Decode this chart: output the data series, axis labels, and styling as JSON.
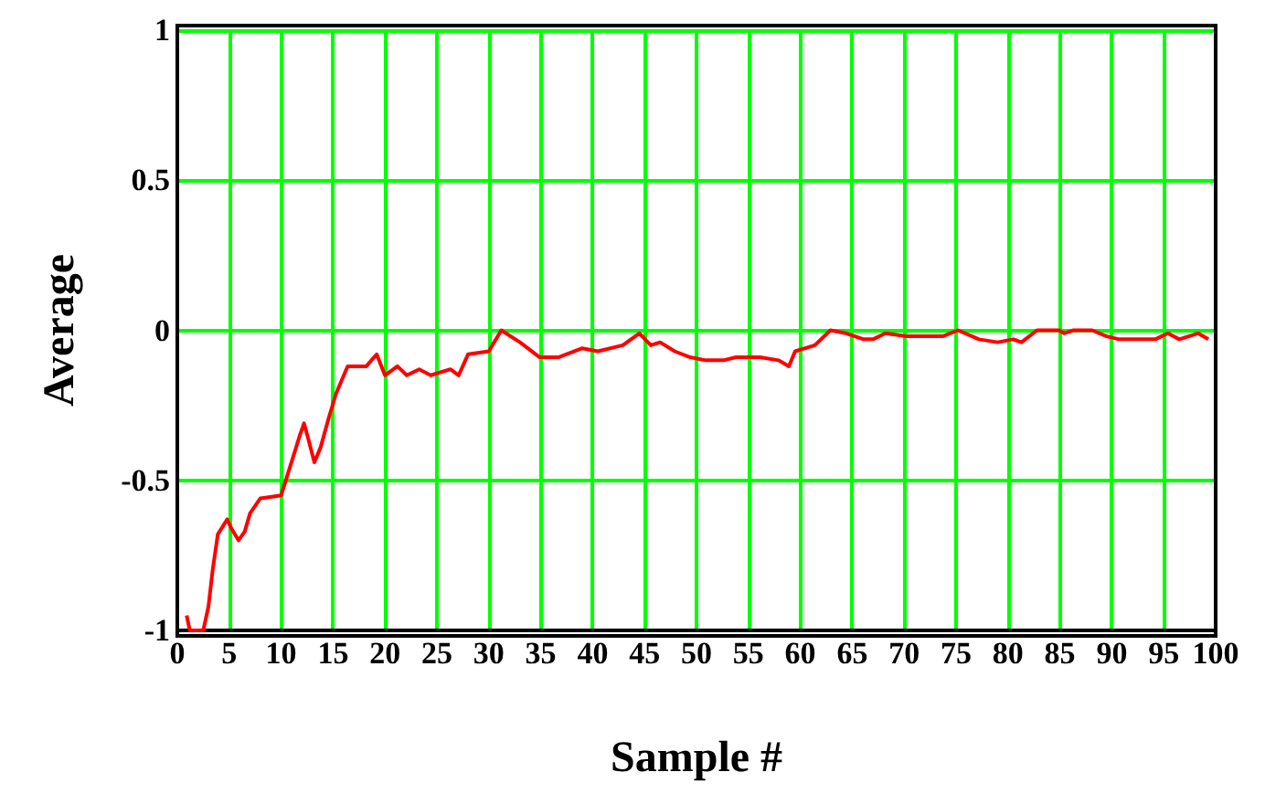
{
  "chart_data": {
    "type": "line",
    "xlabel": "Sample #",
    "ylabel": "Average",
    "xlim": [
      0,
      100
    ],
    "ylim": [
      -1,
      1
    ],
    "xticks": [
      0,
      5,
      10,
      15,
      20,
      25,
      30,
      35,
      40,
      45,
      50,
      55,
      60,
      65,
      70,
      75,
      80,
      85,
      90,
      95,
      100
    ],
    "yticks": [
      -1,
      -0.5,
      0,
      0.5,
      1
    ],
    "grid": true,
    "marker": "none",
    "line_style": "solid",
    "series": [
      {
        "color": "#ff0000",
        "x": [
          0.9,
          1.2,
          2.5,
          3.0,
          3.4,
          3.9,
          4.8,
          5.2,
          5.9,
          6.5,
          7.0,
          8.0,
          10.0,
          10.9,
          11.8,
          12.2,
          12.6,
          13.2,
          13.8,
          14.6,
          15.3,
          16.4,
          18.2,
          19.2,
          20.0,
          21.2,
          22.1,
          23.3,
          24.4,
          26.3,
          27.1,
          28.0,
          30.0,
          31.2,
          33.0,
          34.9,
          36.7,
          39.0,
          40.5,
          42.9,
          44.5,
          45.6,
          46.5,
          47.9,
          49.4,
          50.9,
          52.6,
          53.8,
          56.1,
          57.9,
          58.9,
          59.5,
          61.4,
          62.9,
          64.4,
          66.1,
          67.0,
          68.2,
          70.2,
          73.7,
          75.2,
          77.2,
          79.0,
          80.5,
          81.3,
          82.8,
          84.9,
          85.4,
          86.3,
          88.1,
          89.5,
          90.7,
          94.2,
          95.4,
          96.5,
          98.3,
          99.3
        ],
        "values": [
          -0.95,
          -1.0,
          -1.0,
          -0.92,
          -0.8,
          -0.68,
          -0.63,
          -0.66,
          -0.7,
          -0.67,
          -0.61,
          -0.56,
          -0.55,
          -0.45,
          -0.35,
          -0.31,
          -0.36,
          -0.44,
          -0.39,
          -0.29,
          -0.21,
          -0.12,
          -0.12,
          -0.08,
          -0.15,
          -0.12,
          -0.15,
          -0.13,
          -0.15,
          -0.13,
          -0.15,
          -0.08,
          -0.07,
          0.0,
          -0.04,
          -0.09,
          -0.09,
          -0.06,
          -0.07,
          -0.05,
          -0.01,
          -0.05,
          -0.04,
          -0.07,
          -0.09,
          -0.1,
          -0.1,
          -0.09,
          -0.09,
          -0.1,
          -0.12,
          -0.07,
          -0.05,
          0.0,
          -0.01,
          -0.03,
          -0.03,
          -0.01,
          -0.02,
          -0.02,
          0.0,
          -0.03,
          -0.04,
          -0.03,
          -0.04,
          0.0,
          0.0,
          -0.01,
          0.0,
          0.0,
          -0.02,
          -0.03,
          -0.03,
          -0.01,
          -0.03,
          -0.01,
          -0.03
        ]
      }
    ]
  }
}
